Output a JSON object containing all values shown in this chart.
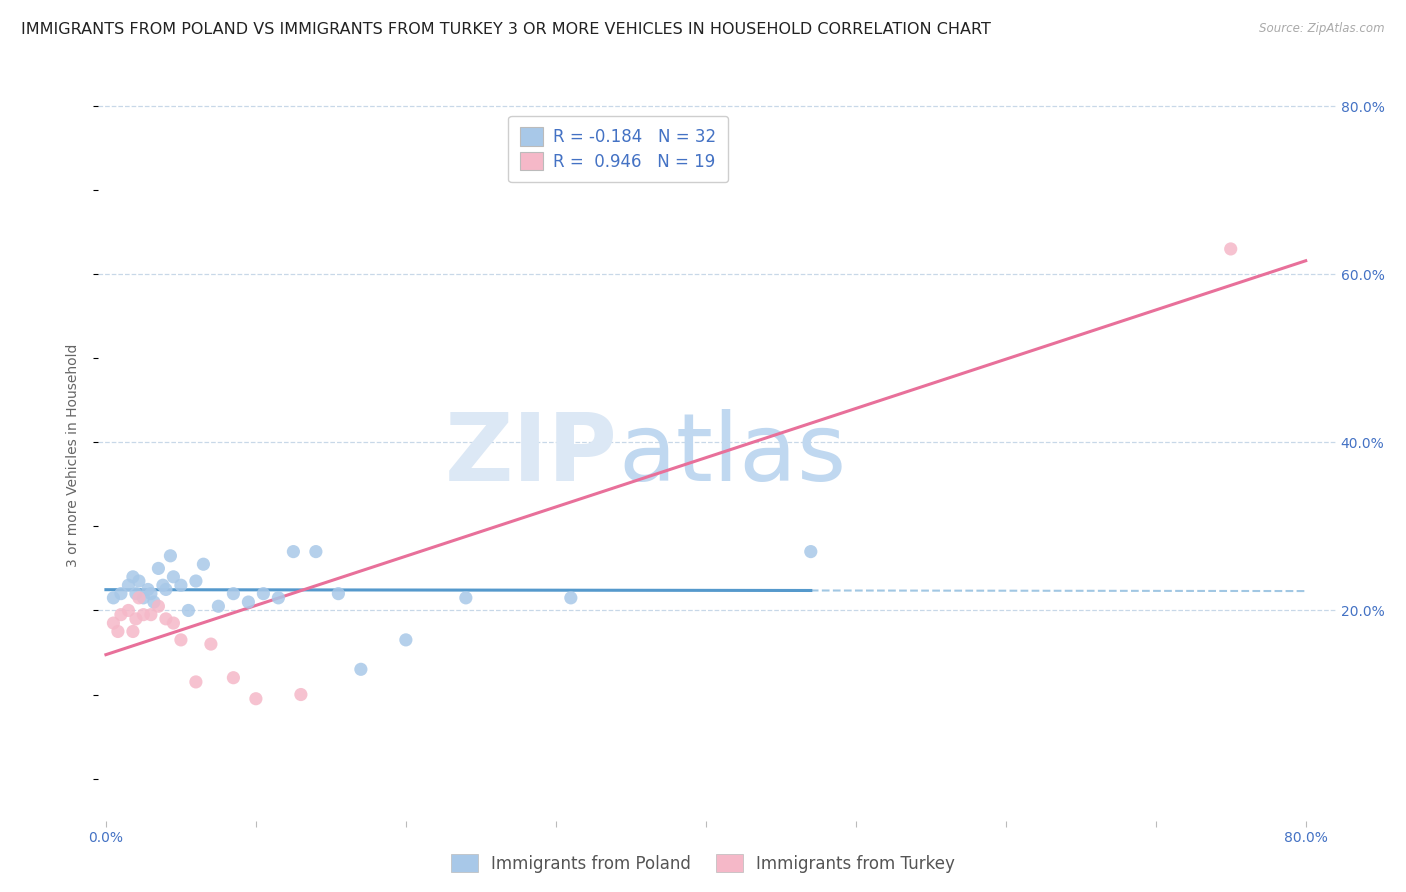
{
  "title": "IMMIGRANTS FROM POLAND VS IMMIGRANTS FROM TURKEY 3 OR MORE VEHICLES IN HOUSEHOLD CORRELATION CHART",
  "source": "Source: ZipAtlas.com",
  "ylabel": "3 or more Vehicles in Household",
  "legend1_label": "Immigrants from Poland",
  "legend2_label": "Immigrants from Turkey",
  "r_poland": -0.184,
  "n_poland": 32,
  "r_turkey": 0.946,
  "n_turkey": 19,
  "watermark_zip": "ZIP",
  "watermark_atlas": "atlas",
  "poland_color": "#a8c8e8",
  "turkey_color": "#f5b8c8",
  "poland_line_color": "#5599cc",
  "turkey_line_color": "#e8709a",
  "xlim": [
    -0.005,
    0.82
  ],
  "ylim": [
    -0.05,
    0.82
  ],
  "right_yticks": [
    0.2,
    0.4,
    0.6,
    0.8
  ],
  "right_yticklabels": [
    "20.0%",
    "40.0%",
    "60.0%",
    "80.0%"
  ],
  "xtick_show": [
    0.0,
    0.8
  ],
  "xticklabels_show": [
    "0.0%",
    "80.0%"
  ],
  "poland_x": [
    0.005,
    0.01,
    0.015,
    0.018,
    0.02,
    0.022,
    0.025,
    0.028,
    0.03,
    0.032,
    0.035,
    0.038,
    0.04,
    0.043,
    0.045,
    0.05,
    0.055,
    0.06,
    0.065,
    0.075,
    0.085,
    0.095,
    0.105,
    0.115,
    0.125,
    0.14,
    0.155,
    0.17,
    0.2,
    0.24,
    0.31,
    0.47
  ],
  "poland_y": [
    0.215,
    0.22,
    0.23,
    0.24,
    0.22,
    0.235,
    0.215,
    0.225,
    0.22,
    0.21,
    0.25,
    0.23,
    0.225,
    0.265,
    0.24,
    0.23,
    0.2,
    0.235,
    0.255,
    0.205,
    0.22,
    0.21,
    0.22,
    0.215,
    0.27,
    0.27,
    0.22,
    0.13,
    0.165,
    0.215,
    0.215,
    0.27
  ],
  "turkey_x": [
    0.005,
    0.008,
    0.01,
    0.015,
    0.018,
    0.02,
    0.022,
    0.025,
    0.03,
    0.035,
    0.04,
    0.045,
    0.05,
    0.06,
    0.07,
    0.085,
    0.1,
    0.13,
    0.75
  ],
  "turkey_y": [
    0.185,
    0.175,
    0.195,
    0.2,
    0.175,
    0.19,
    0.215,
    0.195,
    0.195,
    0.205,
    0.19,
    0.185,
    0.165,
    0.115,
    0.16,
    0.12,
    0.095,
    0.1,
    0.63
  ],
  "bg_color": "#ffffff",
  "grid_color": "#c8d8e8",
  "title_fontsize": 11.5,
  "label_fontsize": 10,
  "tick_fontsize": 10,
  "legend_fontsize": 12
}
